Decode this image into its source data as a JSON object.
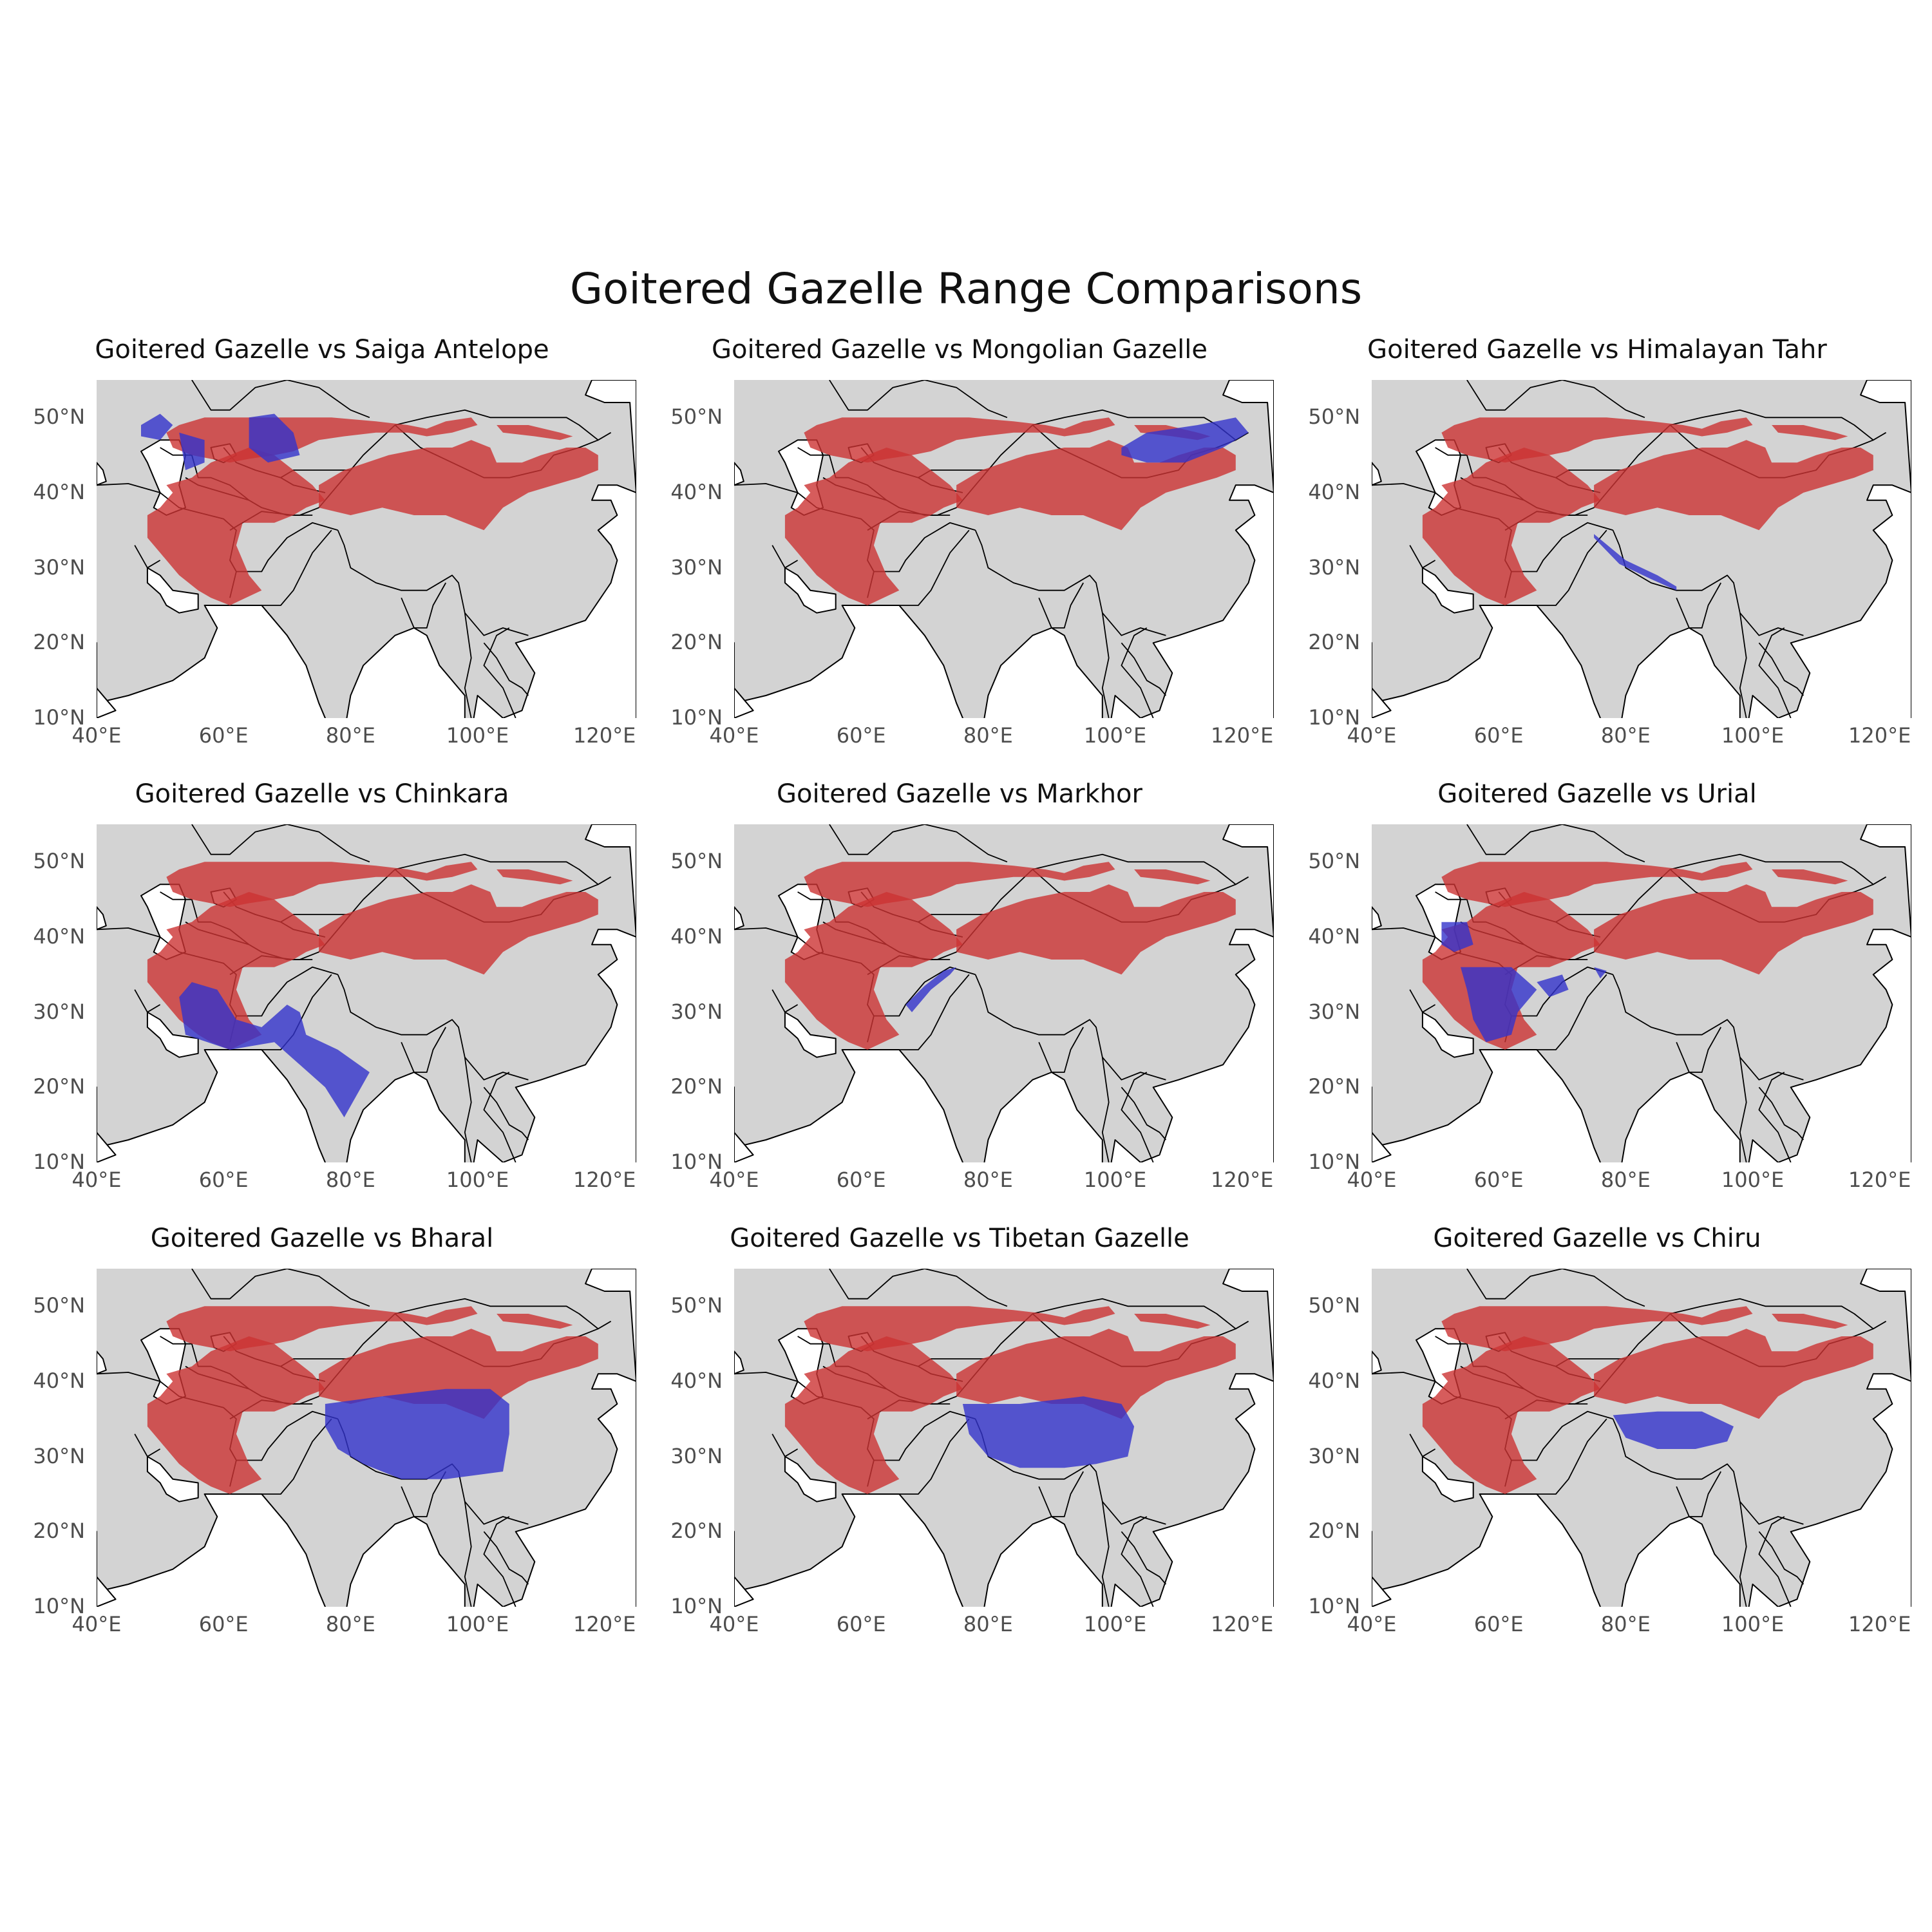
{
  "title": "Goitered Gazelle Range Comparisons",
  "colors": {
    "land": "#d3d3d3",
    "border": "#000000",
    "goitered": "#cc3333",
    "comparison": "#3333cc"
  },
  "axes": {
    "x_ticks": [
      "40°E",
      "60°E",
      "80°E",
      "100°E",
      "120°E"
    ],
    "y_ticks": [
      "50°N",
      "40°N",
      "30°N",
      "20°N",
      "10°N"
    ]
  },
  "chart_data": {
    "type": "map",
    "xlim": [
      40,
      125
    ],
    "ylim": [
      10,
      55
    ],
    "panels": [
      {
        "title": "Goitered Gazelle vs Saiga Antelope",
        "comparison": "Saiga Antelope",
        "comparison_range": [
          [
            [
              47,
              49
            ],
            [
              50,
              50.5
            ],
            [
              52,
              49
            ],
            [
              50,
              47
            ],
            [
              47,
              47.5
            ]
          ],
          [
            [
              53,
              48
            ],
            [
              57,
              47
            ],
            [
              57,
              44
            ],
            [
              54,
              43
            ]
          ],
          [
            [
              64,
              50
            ],
            [
              68,
              50.5
            ],
            [
              71,
              48
            ],
            [
              72,
              45
            ],
            [
              67,
              44
            ],
            [
              64,
              46
            ]
          ]
        ]
      },
      {
        "title": "Goitered Gazelle vs Mongolian Gazelle",
        "comparison": "Mongolian Gazelle",
        "comparison_range": [
          [
            [
              101,
              46
            ],
            [
              105,
              48
            ],
            [
              113,
              49
            ],
            [
              119,
              50
            ],
            [
              121,
              48
            ],
            [
              117,
              46
            ],
            [
              111,
              44
            ],
            [
              105,
              44
            ],
            [
              101,
              45
            ]
          ]
        ]
      },
      {
        "title": "Goitered Gazelle vs Himalayan Tahr",
        "comparison": "Himalayan Tahr",
        "comparison_range": [
          [
            [
              75,
              34.5
            ],
            [
              80,
              31
            ],
            [
              85,
              29
            ],
            [
              88,
              27.5
            ],
            [
              88,
              27
            ],
            [
              84,
              28.5
            ],
            [
              79,
              30.5
            ],
            [
              75,
              34
            ]
          ]
        ]
      },
      {
        "title": "Goitered Gazelle vs Chinkara",
        "comparison": "Chinkara",
        "comparison_range": [
          [
            [
              53,
              32
            ],
            [
              55,
              34
            ],
            [
              59,
              33
            ],
            [
              62,
              29
            ],
            [
              66,
              28
            ],
            [
              70,
              31
            ],
            [
              72,
              30
            ],
            [
              73,
              27
            ],
            [
              78,
              25
            ],
            [
              83,
              22
            ],
            [
              79,
              16
            ],
            [
              76,
              20
            ],
            [
              72,
              23
            ],
            [
              68,
              26
            ],
            [
              61,
              25
            ],
            [
              54,
              27
            ]
          ]
        ]
      },
      {
        "title": "Goitered Gazelle vs Markhor",
        "comparison": "Markhor",
        "comparison_range": [
          [
            [
              67,
              31
            ],
            [
              70,
              33.5
            ],
            [
              73,
              35.5
            ],
            [
              75,
              36
            ],
            [
              74,
              35
            ],
            [
              71,
              33
            ],
            [
              68,
              30
            ]
          ]
        ]
      },
      {
        "title": "Goitered Gazelle vs Urial",
        "comparison": "Urial",
        "comparison_range": [
          [
            [
              51,
              42
            ],
            [
              55,
              42
            ],
            [
              56,
              39
            ],
            [
              53,
              38
            ],
            [
              51,
              39
            ]
          ],
          [
            [
              54,
              36
            ],
            [
              62,
              36
            ],
            [
              66,
              33
            ],
            [
              63,
              30
            ],
            [
              62,
              27
            ],
            [
              58,
              26
            ],
            [
              56,
              29
            ],
            [
              55,
              33
            ]
          ],
          [
            [
              66,
              34
            ],
            [
              70,
              35
            ],
            [
              71,
              33
            ],
            [
              68,
              32
            ]
          ],
          [
            [
              75,
              36
            ],
            [
              77,
              35.5
            ],
            [
              76,
              34.5
            ]
          ]
        ]
      },
      {
        "title": "Goitered Gazelle vs Bharal",
        "comparison": "Bharal",
        "comparison_range": [
          [
            [
              76,
              37
            ],
            [
              85,
              38
            ],
            [
              95,
              39
            ],
            [
              102,
              39
            ],
            [
              105,
              37
            ],
            [
              105,
              33
            ],
            [
              104,
              28
            ],
            [
              95,
              27
            ],
            [
              88,
              27
            ],
            [
              82,
              29
            ],
            [
              78,
              31
            ],
            [
              76,
              34
            ]
          ]
        ]
      },
      {
        "title": "Goitered Gazelle vs Tibetan Gazelle",
        "comparison": "Tibetan Gazelle",
        "comparison_range": [
          [
            [
              76,
              37
            ],
            [
              85,
              37
            ],
            [
              95,
              38
            ],
            [
              101,
              37
            ],
            [
              103,
              34
            ],
            [
              102,
              30
            ],
            [
              97,
              29
            ],
            [
              92,
              28.5
            ],
            [
              85,
              28.5
            ],
            [
              80,
              30
            ],
            [
              77,
              33
            ]
          ]
        ]
      },
      {
        "title": "Goitered Gazelle vs Chiru",
        "comparison": "Chiru",
        "comparison_range": [
          [
            [
              78,
              35.5
            ],
            [
              85,
              36
            ],
            [
              92,
              36
            ],
            [
              97,
              34
            ],
            [
              96,
              32
            ],
            [
              91,
              31
            ],
            [
              85,
              31
            ],
            [
              80,
              32.5
            ]
          ]
        ]
      }
    ]
  }
}
